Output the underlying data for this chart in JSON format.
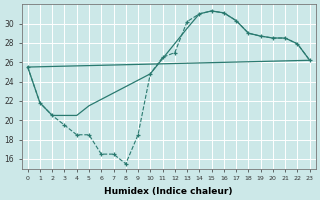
{
  "xlabel": "Humidex (Indice chaleur)",
  "bg_color": "#cce8e8",
  "grid_color": "#ffffff",
  "line_color": "#2a7a70",
  "xlim": [
    -0.5,
    23.5
  ],
  "ylim": [
    15.0,
    32.0
  ],
  "xticks": [
    0,
    1,
    2,
    3,
    4,
    5,
    6,
    7,
    8,
    9,
    10,
    11,
    12,
    13,
    14,
    15,
    16,
    17,
    18,
    19,
    20,
    21,
    22,
    23
  ],
  "yticks": [
    16,
    18,
    20,
    22,
    24,
    26,
    28,
    30
  ],
  "curve_dotted_x": [
    0,
    1,
    2,
    3,
    4,
    5,
    6,
    7,
    8,
    9,
    10,
    11,
    12,
    13,
    14,
    15,
    16,
    17,
    18,
    19,
    20,
    21,
    22,
    23
  ],
  "curve_dotted_y": [
    25.5,
    21.8,
    20.5,
    19.5,
    18.5,
    18.5,
    16.5,
    16.5,
    15.5,
    18.5,
    24.8,
    26.5,
    27.0,
    30.2,
    31.0,
    31.3,
    31.1,
    30.3,
    29.0,
    28.7,
    28.5,
    28.5,
    27.9,
    26.2
  ],
  "curve_smooth_x": [
    0,
    1,
    2,
    3,
    4,
    5,
    10,
    13,
    14,
    15,
    16,
    17,
    18,
    19,
    20,
    21,
    22,
    23
  ],
  "curve_smooth_y": [
    25.5,
    21.8,
    20.5,
    20.5,
    20.5,
    21.5,
    24.8,
    29.5,
    31.0,
    31.3,
    31.1,
    30.3,
    29.0,
    28.7,
    28.5,
    28.5,
    27.9,
    26.2
  ],
  "line_x": [
    0,
    23
  ],
  "line_y": [
    25.5,
    26.2
  ],
  "xtick_fontsize": 4.5,
  "ytick_fontsize": 5.5,
  "xlabel_fontsize": 6.5
}
